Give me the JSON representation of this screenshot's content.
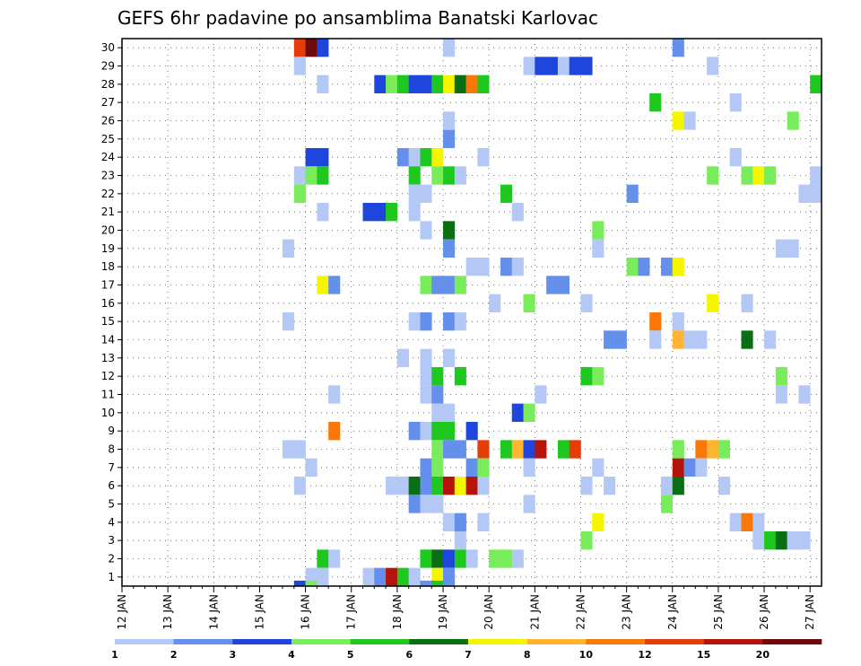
{
  "chart_data": {
    "type": "heatmap",
    "title": "GEFS 6hr padavine po ansamblima Banatski Karlovac",
    "x_ticks": [
      "12 JAN",
      "13 JAN",
      "14 JAN",
      "15 JAN",
      "16 JAN",
      "17 JAN",
      "18 JAN",
      "19 JAN",
      "20 JAN",
      "21 JAN",
      "22 JAN",
      "23 JAN",
      "24 JAN",
      "25 JAN",
      "26 JAN",
      "27 JAN"
    ],
    "y_ticks": [
      "1",
      "2",
      "3",
      "4",
      "5",
      "6",
      "7",
      "8",
      "9",
      "10",
      "11",
      "12",
      "13",
      "14",
      "15",
      "16",
      "17",
      "18",
      "19",
      "20",
      "21",
      "22",
      "23",
      "24",
      "25",
      "26",
      "27",
      "28",
      "29",
      "30"
    ],
    "xlim": [
      0,
      61
    ],
    "ylim": [
      0.5,
      30.5
    ],
    "grid": true,
    "colorbar": {
      "labels": [
        "1",
        "2",
        "3",
        "4",
        "5",
        "6",
        "7",
        "8",
        "10",
        "12",
        "15",
        "20"
      ],
      "colors": [
        "#b4c8f5",
        "#6490eb",
        "#1e46dc",
        "#78ec5a",
        "#1ec81e",
        "#0a6e14",
        "#f5f500",
        "#ffb432",
        "#fa780a",
        "#e63c0a",
        "#b4140a",
        "#6e0a0a"
      ]
    },
    "cells": [
      [
        15,
        30,
        10
      ],
      [
        16,
        30,
        12
      ],
      [
        17,
        30,
        3
      ],
      [
        28,
        30,
        1
      ],
      [
        48,
        30,
        2
      ],
      [
        15,
        29,
        1
      ],
      [
        35,
        29,
        1
      ],
      [
        36,
        29,
        3
      ],
      [
        37,
        29,
        3
      ],
      [
        38,
        29,
        1
      ],
      [
        39,
        29,
        3
      ],
      [
        40,
        29,
        3
      ],
      [
        51,
        29,
        1
      ],
      [
        17,
        28,
        1
      ],
      [
        22,
        28,
        3
      ],
      [
        23,
        28,
        4
      ],
      [
        24,
        28,
        5
      ],
      [
        25,
        28,
        3
      ],
      [
        26,
        28,
        3
      ],
      [
        27,
        28,
        5
      ],
      [
        28,
        28,
        7
      ],
      [
        29,
        28,
        6
      ],
      [
        30,
        28,
        9
      ],
      [
        31,
        28,
        5
      ],
      [
        60,
        28,
        5
      ],
      [
        46,
        27,
        5
      ],
      [
        53,
        27,
        1
      ],
      [
        28,
        26,
        1
      ],
      [
        48,
        26,
        7
      ],
      [
        49,
        26,
        1
      ],
      [
        58,
        26,
        4
      ],
      [
        28,
        25,
        2
      ],
      [
        16,
        24,
        3
      ],
      [
        17,
        24,
        3
      ],
      [
        24,
        24,
        2
      ],
      [
        25,
        24,
        1
      ],
      [
        26,
        24,
        5
      ],
      [
        27,
        24,
        7
      ],
      [
        31,
        24,
        1
      ],
      [
        53,
        24,
        1
      ],
      [
        15,
        23,
        1
      ],
      [
        16,
        23,
        4
      ],
      [
        17,
        23,
        5
      ],
      [
        25,
        23,
        5
      ],
      [
        27,
        23,
        4
      ],
      [
        28,
        23,
        5
      ],
      [
        29,
        23,
        1
      ],
      [
        51,
        23,
        4
      ],
      [
        54,
        23,
        4
      ],
      [
        55,
        23,
        7
      ],
      [
        56,
        23,
        4
      ],
      [
        60,
        23,
        1
      ],
      [
        15,
        22,
        4
      ],
      [
        25,
        22,
        1
      ],
      [
        26,
        22,
        1
      ],
      [
        33,
        22,
        5
      ],
      [
        44,
        22,
        2
      ],
      [
        59,
        22,
        1
      ],
      [
        60,
        22,
        1
      ],
      [
        17,
        21,
        1
      ],
      [
        21,
        21,
        3
      ],
      [
        22,
        21,
        3
      ],
      [
        23,
        21,
        5
      ],
      [
        25,
        21,
        1
      ],
      [
        34,
        21,
        1
      ],
      [
        26,
        20,
        1
      ],
      [
        28,
        20,
        6
      ],
      [
        41,
        20,
        4
      ],
      [
        14,
        19,
        1
      ],
      [
        28,
        19,
        2
      ],
      [
        41,
        19,
        1
      ],
      [
        57,
        19,
        1
      ],
      [
        58,
        19,
        1
      ],
      [
        30,
        18,
        1
      ],
      [
        31,
        18,
        1
      ],
      [
        33,
        18,
        2
      ],
      [
        34,
        18,
        1
      ],
      [
        44,
        18,
        4
      ],
      [
        45,
        18,
        2
      ],
      [
        47,
        18,
        2
      ],
      [
        48,
        18,
        7
      ],
      [
        17,
        17,
        7
      ],
      [
        18,
        17,
        2
      ],
      [
        26,
        17,
        4
      ],
      [
        27,
        17,
        2
      ],
      [
        28,
        17,
        2
      ],
      [
        29,
        17,
        4
      ],
      [
        37,
        17,
        2
      ],
      [
        38,
        17,
        2
      ],
      [
        32,
        16,
        1
      ],
      [
        35,
        16,
        4
      ],
      [
        40,
        16,
        1
      ],
      [
        51,
        16,
        7
      ],
      [
        54,
        16,
        1
      ],
      [
        14,
        15,
        1
      ],
      [
        25,
        15,
        1
      ],
      [
        26,
        15,
        2
      ],
      [
        28,
        15,
        2
      ],
      [
        29,
        15,
        1
      ],
      [
        46,
        15,
        9
      ],
      [
        48,
        15,
        1
      ],
      [
        42,
        14,
        2
      ],
      [
        43,
        14,
        2
      ],
      [
        46,
        14,
        1
      ],
      [
        48,
        14,
        8
      ],
      [
        49,
        14,
        1
      ],
      [
        50,
        14,
        1
      ],
      [
        54,
        14,
        6
      ],
      [
        56,
        14,
        1
      ],
      [
        24,
        13,
        1
      ],
      [
        26,
        13,
        1
      ],
      [
        28,
        13,
        1
      ],
      [
        26,
        12,
        1
      ],
      [
        27,
        12,
        5
      ],
      [
        29,
        12,
        5
      ],
      [
        40,
        12,
        5
      ],
      [
        41,
        12,
        4
      ],
      [
        57,
        12,
        4
      ],
      [
        18,
        11,
        1
      ],
      [
        26,
        11,
        1
      ],
      [
        27,
        11,
        2
      ],
      [
        36,
        11,
        1
      ],
      [
        57,
        11,
        1
      ],
      [
        59,
        11,
        1
      ],
      [
        27,
        10,
        1
      ],
      [
        28,
        10,
        1
      ],
      [
        34,
        10,
        3
      ],
      [
        35,
        10,
        4
      ],
      [
        18,
        9,
        9
      ],
      [
        25,
        9,
        2
      ],
      [
        26,
        9,
        1
      ],
      [
        27,
        9,
        5
      ],
      [
        28,
        9,
        5
      ],
      [
        30,
        9,
        3
      ],
      [
        14,
        8,
        1
      ],
      [
        15,
        8,
        1
      ],
      [
        27,
        8,
        4
      ],
      [
        28,
        8,
        2
      ],
      [
        29,
        8,
        2
      ],
      [
        31,
        8,
        10
      ],
      [
        33,
        8,
        5
      ],
      [
        34,
        8,
        8
      ],
      [
        35,
        8,
        3
      ],
      [
        36,
        8,
        11
      ],
      [
        38,
        8,
        5
      ],
      [
        39,
        8,
        10
      ],
      [
        48,
        8,
        4
      ],
      [
        50,
        8,
        9
      ],
      [
        51,
        8,
        8
      ],
      [
        52,
        8,
        4
      ],
      [
        16,
        7,
        1
      ],
      [
        26,
        7,
        2
      ],
      [
        27,
        7,
        4
      ],
      [
        30,
        7,
        2
      ],
      [
        31,
        7,
        4
      ],
      [
        35,
        7,
        1
      ],
      [
        41,
        7,
        1
      ],
      [
        48,
        7,
        11
      ],
      [
        49,
        7,
        2
      ],
      [
        50,
        7,
        1
      ],
      [
        15,
        6,
        1
      ],
      [
        23,
        6,
        1
      ],
      [
        24,
        6,
        1
      ],
      [
        25,
        6,
        6
      ],
      [
        26,
        6,
        2
      ],
      [
        27,
        6,
        5
      ],
      [
        28,
        6,
        11
      ],
      [
        29,
        6,
        7
      ],
      [
        30,
        6,
        11
      ],
      [
        31,
        6,
        1
      ],
      [
        40,
        6,
        1
      ],
      [
        42,
        6,
        1
      ],
      [
        47,
        6,
        1
      ],
      [
        48,
        6,
        6
      ],
      [
        52,
        6,
        1
      ],
      [
        25,
        5,
        2
      ],
      [
        26,
        5,
        1
      ],
      [
        27,
        5,
        1
      ],
      [
        35,
        5,
        1
      ],
      [
        47,
        5,
        4
      ],
      [
        28,
        4,
        1
      ],
      [
        29,
        4,
        2
      ],
      [
        31,
        4,
        1
      ],
      [
        41,
        4,
        7
      ],
      [
        53,
        4,
        1
      ],
      [
        54,
        4,
        9
      ],
      [
        55,
        4,
        1
      ],
      [
        29,
        3,
        1
      ],
      [
        40,
        3,
        4
      ],
      [
        55,
        3,
        1
      ],
      [
        56,
        3,
        5
      ],
      [
        57,
        3,
        6
      ],
      [
        58,
        3,
        1
      ],
      [
        59,
        3,
        1
      ],
      [
        17,
        2,
        5
      ],
      [
        18,
        2,
        1
      ],
      [
        26,
        2,
        5
      ],
      [
        27,
        2,
        6
      ],
      [
        28,
        2,
        3
      ],
      [
        29,
        2,
        5
      ],
      [
        30,
        2,
        1
      ],
      [
        32,
        2,
        4
      ],
      [
        33,
        2,
        4
      ],
      [
        34,
        2,
        1
      ],
      [
        16,
        1,
        1
      ],
      [
        17,
        1,
        1
      ],
      [
        21,
        1,
        1
      ],
      [
        22,
        1,
        2
      ],
      [
        23,
        1,
        11
      ],
      [
        24,
        1,
        5
      ],
      [
        25,
        1,
        1
      ],
      [
        27,
        1,
        7
      ],
      [
        28,
        1,
        2
      ],
      [
        15,
        0,
        3
      ],
      [
        16,
        0,
        4
      ],
      [
        26,
        0,
        2
      ],
      [
        27,
        0,
        5
      ]
    ]
  }
}
